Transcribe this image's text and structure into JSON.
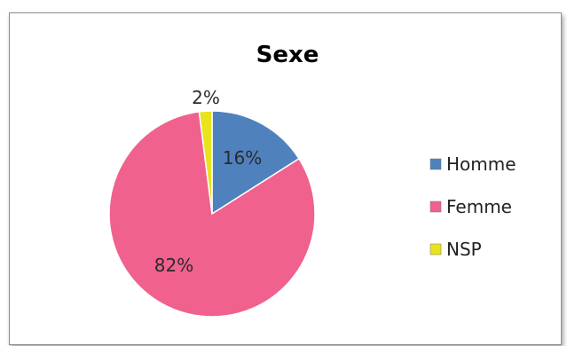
{
  "chart_data": {
    "type": "pie",
    "title": "Sexe",
    "categories": [
      "Homme",
      "Femme",
      "NSP"
    ],
    "values": [
      16,
      82,
      2
    ],
    "labels": [
      "16%",
      "82%",
      "2%"
    ],
    "colors": [
      "#4f81bd",
      "#f0618d",
      "#e8e31c"
    ],
    "legend": {
      "position": "right",
      "entries": [
        "Homme",
        "Femme",
        "NSP"
      ]
    }
  }
}
